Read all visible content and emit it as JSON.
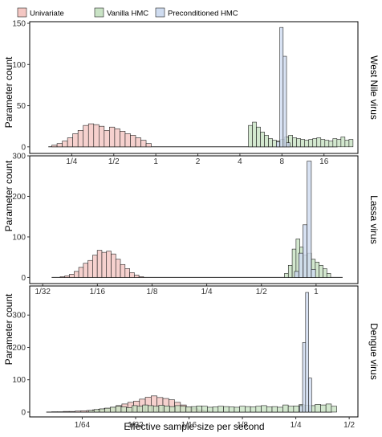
{
  "chart_data": {
    "type": "histogram",
    "xlabel": "Effective sample size per second",
    "ylabel": "Parameter count",
    "legend": {
      "placement": "top-left",
      "entries": [
        {
          "name": "Univariate",
          "color": "#f4c7c3"
        },
        {
          "name": "Vanilla HMC",
          "color": "#c9e3c5"
        },
        {
          "name": "Preconditioned HMC",
          "color": "#cfdcf0"
        }
      ]
    },
    "bar_outline_color": "#222222",
    "panels": [
      {
        "title": "West Nile virus",
        "x_scale": "log2",
        "x_ticks": [
          {
            "value": 0.25,
            "label": "1/4"
          },
          {
            "value": 0.5,
            "label": "1/2"
          },
          {
            "value": 1,
            "label": "1"
          },
          {
            "value": 2,
            "label": "2"
          },
          {
            "value": 4,
            "label": "4"
          },
          {
            "value": 8,
            "label": "8"
          },
          {
            "value": 16,
            "label": "16"
          }
        ],
        "x_range": [
          0.125,
          28
        ],
        "y_range": [
          -8,
          152
        ],
        "y_ticks": [
          0,
          50,
          100,
          150
        ],
        "baseline_range": [
          0.17,
          20
        ],
        "series": [
          {
            "name": "Univariate",
            "bin_start": 0.18,
            "bin_ratio": 1.0902,
            "counts": [
              2,
              4,
              7,
              11,
              16,
              20,
              26,
              28,
              27,
              25,
              20,
              24,
              22,
              19,
              16,
              14,
              11,
              8,
              4
            ]
          },
          {
            "name": "Vanilla HMC",
            "bin_start": 4.6,
            "bin_ratio": 1.0686,
            "counts": [
              26,
              30,
              24,
              18,
              14,
              10,
              8,
              7,
              9,
              12,
              14,
              11,
              10,
              9,
              8,
              9,
              10,
              11,
              9,
              8,
              7,
              10,
              9,
              12,
              8,
              9
            ]
          },
          {
            "name": "Preconditioned HMC",
            "bin_start": 7.3,
            "bin_ratio": 1.0573,
            "counts": [
              6,
              145,
              110,
              5
            ]
          }
        ]
      },
      {
        "title": "Lassa virus",
        "x_scale": "log2",
        "x_ticks": [
          {
            "value": 0.03125,
            "label": "1/32"
          },
          {
            "value": 0.0625,
            "label": "1/16"
          },
          {
            "value": 0.125,
            "label": "1/8"
          },
          {
            "value": 0.25,
            "label": "1/4"
          },
          {
            "value": 0.5,
            "label": "1/2"
          },
          {
            "value": 1,
            "label": "1"
          }
        ],
        "x_range": [
          0.0265,
          1.7
        ],
        "y_range": [
          -15,
          300
        ],
        "y_ticks": [
          0,
          100,
          200,
          300
        ],
        "baseline_range": [
          0.035,
          1.4
        ],
        "series": [
          {
            "name": "Univariate",
            "bin_start": 0.039,
            "bin_ratio": 1.0605,
            "counts": [
              2,
              4,
              8,
              15,
              25,
              35,
              42,
              55,
              67,
              62,
              65,
              58,
              45,
              32,
              22,
              12,
              6,
              2
            ]
          },
          {
            "name": "Vanilla HMC",
            "bin_start": 0.67,
            "bin_ratio": 1.05,
            "counts": [
              10,
              30,
              70,
              95,
              75,
              55,
              60,
              45,
              38,
              30,
              22,
              10
            ]
          },
          {
            "name": "Preconditioned HMC",
            "bin_start": 0.76,
            "bin_ratio": 1.055,
            "counts": [
              15,
              60,
              130,
              287,
              20
            ]
          }
        ]
      },
      {
        "title": "Dengue virus",
        "x_scale": "log2",
        "x_ticks": [
          {
            "value": 0.015625,
            "label": "1/64"
          },
          {
            "value": 0.03125,
            "label": "1/32"
          },
          {
            "value": 0.0625,
            "label": "1/16"
          },
          {
            "value": 0.125,
            "label": "1/8"
          },
          {
            "value": 0.25,
            "label": "1/4"
          },
          {
            "value": 0.5,
            "label": "1/2"
          }
        ],
        "x_range": [
          0.0079,
          0.56
        ],
        "y_range": [
          -15,
          390
        ],
        "y_ticks": [
          0,
          100,
          200,
          300
        ],
        "baseline_range": [
          0.0098,
          0.4
        ],
        "series": [
          {
            "name": "Univariate",
            "bin_start": 0.0105,
            "bin_ratio": 1.079,
            "counts": [
              1,
              1,
              2,
              2,
              3,
              4,
              5,
              7,
              9,
              12,
              15,
              20,
              25,
              30,
              34,
              40,
              46,
              50,
              45,
              42,
              38,
              30,
              22,
              15,
              10,
              6,
              3
            ]
          },
          {
            "name": "Vanilla HMC",
            "bin_start": 0.017,
            "bin_ratio": 1.0725,
            "counts": [
              5,
              8,
              10,
              12,
              15,
              18,
              16,
              14,
              20,
              18,
              22,
              20,
              18,
              21,
              19,
              17,
              20,
              18,
              16,
              17,
              19,
              18,
              15,
              16,
              18,
              17,
              16,
              15,
              18,
              17,
              16,
              18,
              20,
              16,
              17,
              15,
              22,
              18,
              19,
              23,
              21,
              20,
              24,
              22,
              25,
              18
            ]
          },
          {
            "name": "Preconditioned HMC",
            "bin_start": 0.2625,
            "bin_ratio": 1.04,
            "counts": [
              20,
              215,
              370,
              105
            ]
          }
        ]
      }
    ]
  }
}
